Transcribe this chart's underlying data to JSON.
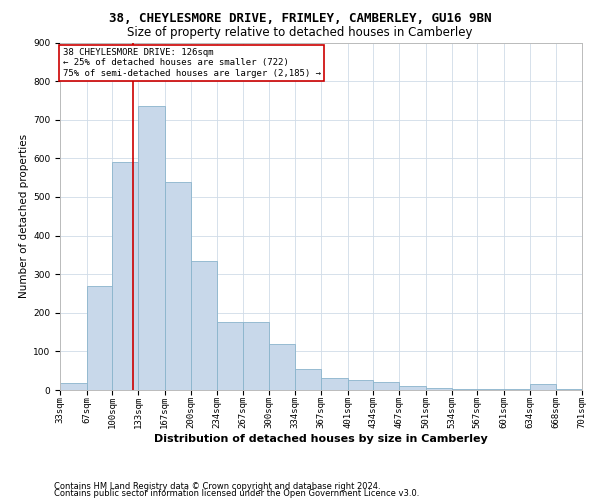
{
  "title1": "38, CHEYLESMORE DRIVE, FRIMLEY, CAMBERLEY, GU16 9BN",
  "title2": "Size of property relative to detached houses in Camberley",
  "xlabel": "Distribution of detached houses by size in Camberley",
  "ylabel": "Number of detached properties",
  "footer1": "Contains HM Land Registry data © Crown copyright and database right 2024.",
  "footer2": "Contains public sector information licensed under the Open Government Licence v3.0.",
  "annotation_line1": "38 CHEYLESMORE DRIVE: 126sqm",
  "annotation_line2": "← 25% of detached houses are smaller (722)",
  "annotation_line3": "75% of semi-detached houses are larger (2,185) →",
  "bar_color": "#c8d8ea",
  "bar_edge_color": "#8ab4cc",
  "grid_color": "#d0dce8",
  "property_line_color": "#cc0000",
  "annotation_box_color": "#cc0000",
  "bin_edges": [
    33,
    67,
    100,
    133,
    167,
    200,
    234,
    267,
    300,
    334,
    367,
    401,
    434,
    467,
    501,
    534,
    567,
    601,
    634,
    668,
    701
  ],
  "bar_heights": [
    17,
    270,
    590,
    735,
    540,
    335,
    175,
    175,
    118,
    55,
    30,
    25,
    20,
    10,
    5,
    2,
    2,
    2,
    15,
    2,
    0
  ],
  "property_value": 126,
  "ylim": [
    0,
    900
  ],
  "yticks": [
    0,
    100,
    200,
    300,
    400,
    500,
    600,
    700,
    800,
    900
  ],
  "title1_fontsize": 9,
  "title2_fontsize": 8.5,
  "ylabel_fontsize": 7.5,
  "xlabel_fontsize": 8,
  "tick_fontsize": 6.5,
  "annotation_fontsize": 6.5,
  "footer_fontsize": 6,
  "background_color": "#ffffff"
}
